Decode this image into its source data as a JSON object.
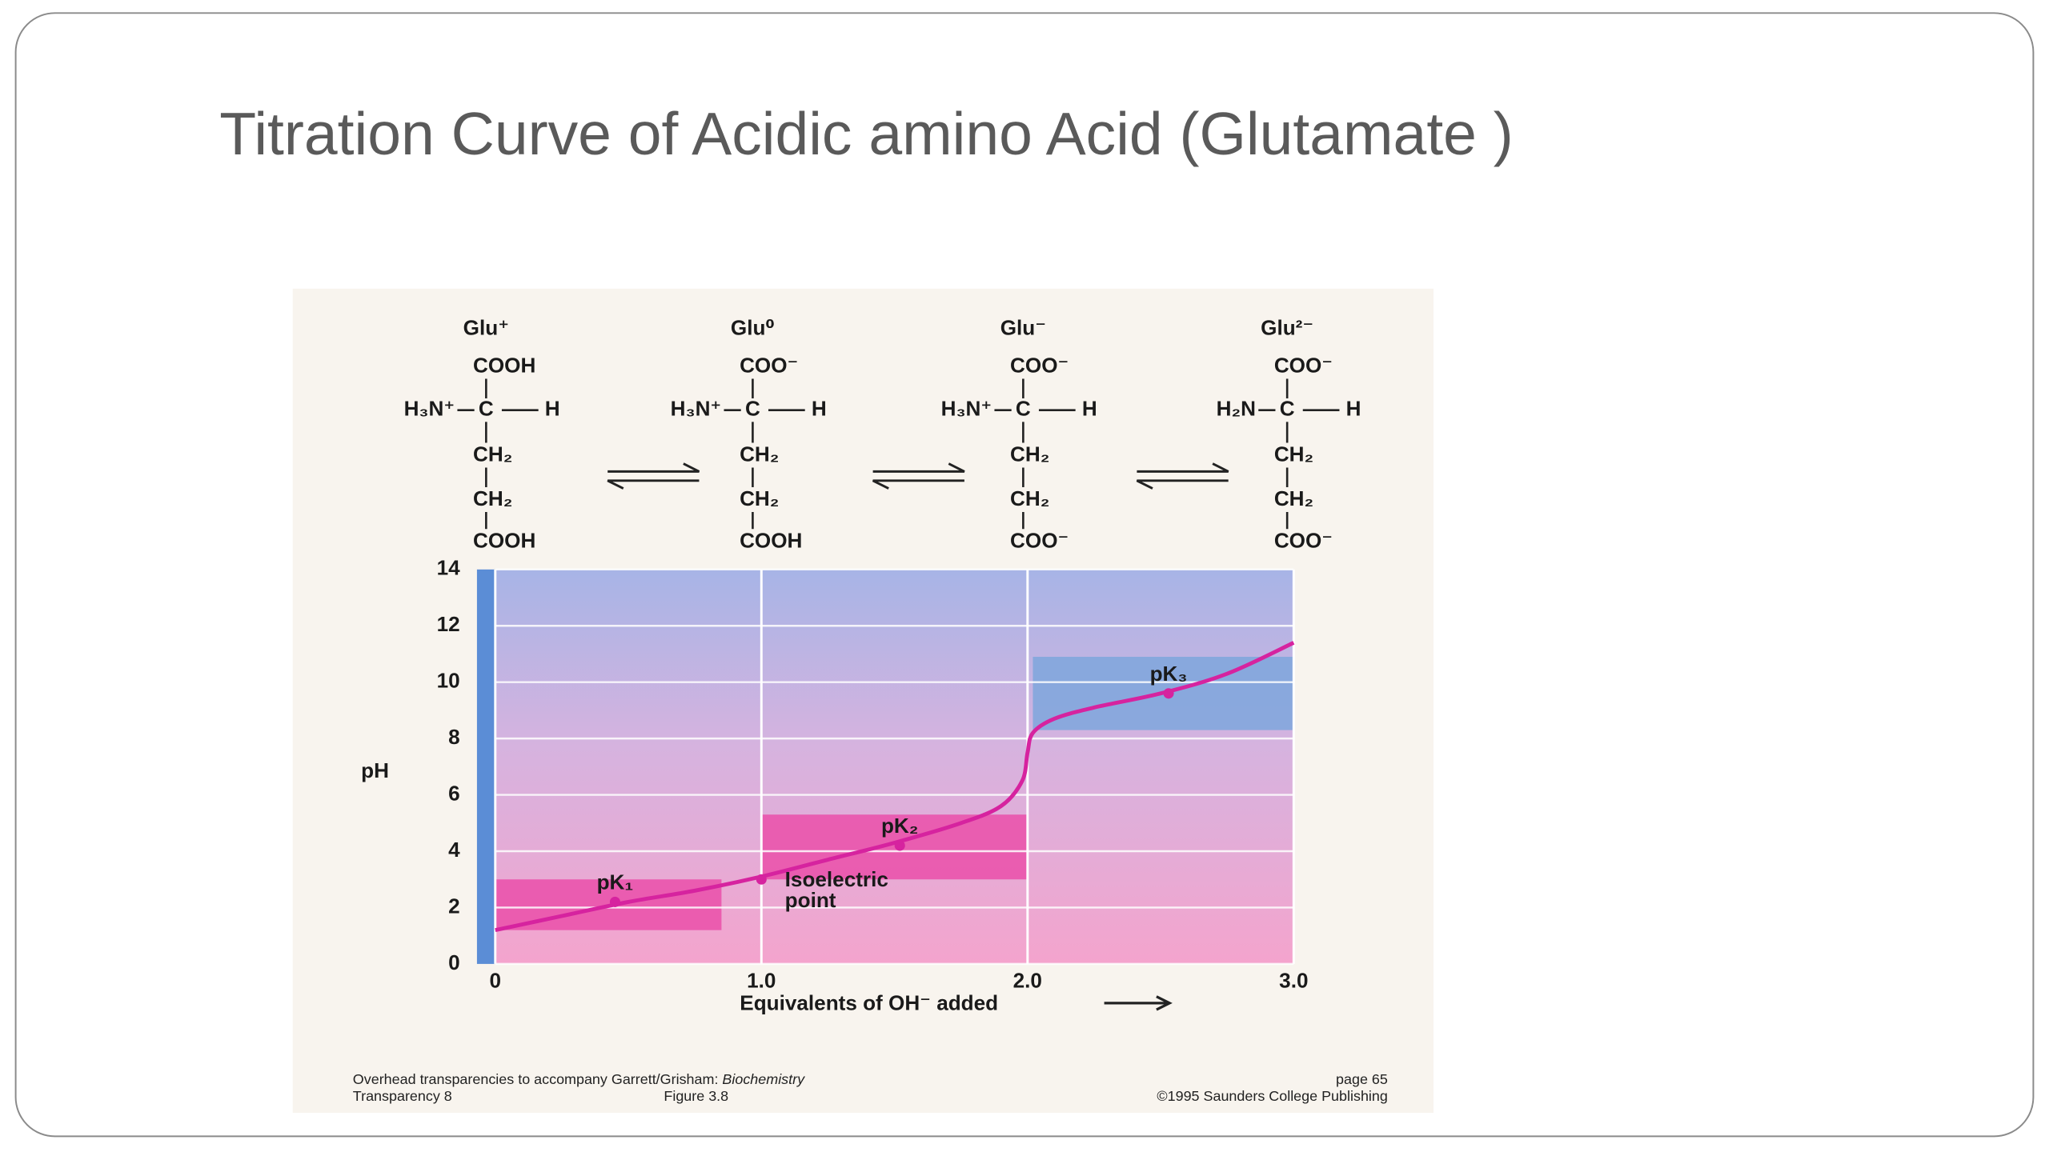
{
  "title": "Titration Curve  of  Acidic amino Acid (Glutamate )",
  "structures": [
    {
      "name": "Glu⁺",
      "top": "COOH",
      "left": "H₃N⁺",
      "center": "C",
      "right": "H",
      "chain": [
        "CH₂",
        "CH₂",
        "COOH"
      ]
    },
    {
      "name": "Glu⁰",
      "top": "COO⁻",
      "left": "H₃N⁺",
      "center": "C",
      "right": "H",
      "chain": [
        "CH₂",
        "CH₂",
        "COOH"
      ]
    },
    {
      "name": "Glu⁻",
      "top": "COO⁻",
      "left": "H₃N⁺",
      "center": "C",
      "right": "H",
      "chain": [
        "CH₂",
        "CH₂",
        "COO⁻"
      ]
    },
    {
      "name": "Glu²⁻",
      "top": "COO⁻",
      "left": "H₂N",
      "center": "C",
      "right": "H",
      "chain": [
        "CH₂",
        "CH₂",
        "COO⁻"
      ]
    }
  ],
  "chart_data": {
    "type": "line",
    "x_label": "Equivalents of OH⁻ added",
    "y_label": "pH",
    "x": [
      0,
      0.25,
      0.5,
      0.75,
      1.0,
      1.25,
      1.5,
      1.75,
      1.9,
      1.98,
      2.0,
      2.02,
      2.1,
      2.25,
      2.5,
      2.75,
      3.0
    ],
    "values": [
      1.2,
      1.7,
      2.2,
      2.6,
      3.1,
      3.7,
      4.3,
      5.0,
      5.6,
      6.5,
      7.5,
      8.2,
      8.7,
      9.1,
      9.6,
      10.3,
      11.4
    ],
    "color": "#d6239f",
    "xlim": [
      0,
      3
    ],
    "ylim": [
      0,
      14
    ],
    "xticks": [
      0,
      {
        "value": 1,
        "label": "1.0"
      },
      {
        "value": 2,
        "label": "2.0"
      },
      {
        "value": 3,
        "label": "3.0"
      }
    ],
    "yticks": [
      0,
      2,
      4,
      6,
      8,
      10,
      12,
      14
    ],
    "grid": true,
    "shaded_regions": [
      {
        "x": [
          0,
          0.85
        ],
        "y": [
          1.2,
          3.0
        ],
        "color": "#ea4fa9"
      },
      {
        "x": [
          1.0,
          2.0
        ],
        "y": [
          3.0,
          5.3
        ],
        "color": "#ea4fa9"
      },
      {
        "x": [
          2.02,
          3.0
        ],
        "y": [
          8.3,
          10.9
        ],
        "color": "#7ea6dc"
      }
    ],
    "points": [
      {
        "label": "pK₁",
        "x": 0.45,
        "y": 2.2
      },
      {
        "label": [
          "Isoelectric",
          "point"
        ],
        "x": 1.0,
        "y": 3.0
      },
      {
        "label": "pK₂",
        "x": 1.52,
        "y": 4.2
      },
      {
        "label": "pK₃",
        "x": 2.53,
        "y": 9.6
      }
    ]
  },
  "footer": {
    "line1": "Overhead transparencies to accompany Garrett/Grisham: ",
    "book": "Biochemistry",
    "page": "page 65",
    "transparency": "Transparency 8",
    "figure": "Figure 3.8",
    "copyright": "©1995 Saunders College Publishing"
  }
}
